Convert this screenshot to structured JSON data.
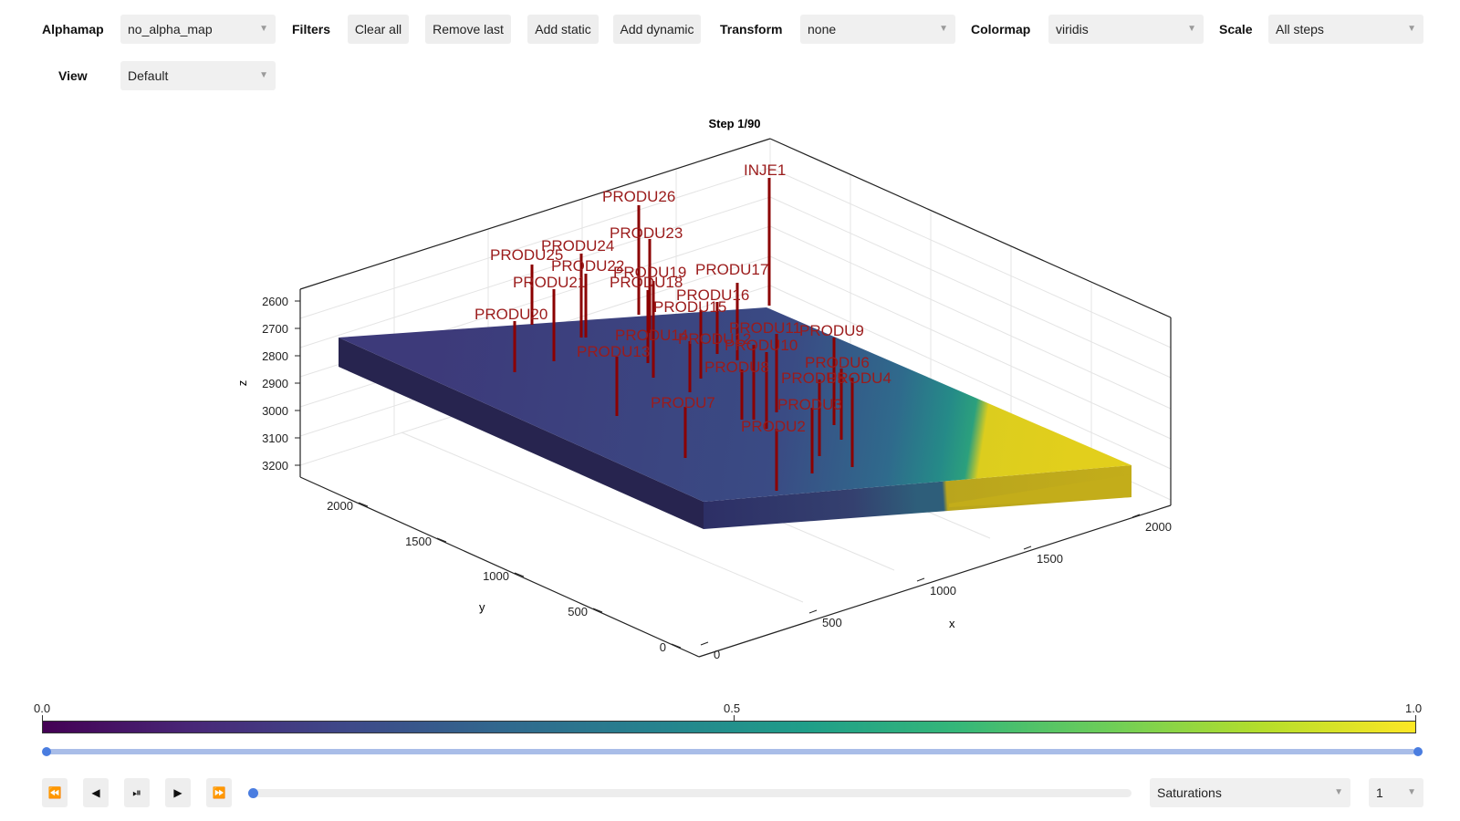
{
  "toolbar": {
    "alphamap": {
      "label": "Alphamap",
      "value": "no_alpha_map"
    },
    "filters": {
      "label": "Filters"
    },
    "buttons": {
      "clear_all": "Clear all",
      "remove_last": "Remove last",
      "add_static": "Add static",
      "add_dynamic": "Add dynamic"
    },
    "transform": {
      "label": "Transform",
      "value": "none"
    },
    "colormap": {
      "label": "Colormap",
      "value": "viridis"
    },
    "scale": {
      "label": "Scale",
      "value": "All steps"
    },
    "view": {
      "label": "View",
      "value": "Default"
    }
  },
  "colors": {
    "accent": "#4a7de0",
    "well": "#8b0000",
    "well_label": "#9b1b1b"
  },
  "chart_data": {
    "type": "3d-volume",
    "title": "Step 1/90",
    "xlabel": "x",
    "ylabel": "y",
    "zlabel": "z",
    "x_ticks": [
      0,
      500,
      1000,
      1500,
      2000
    ],
    "y_ticks": [
      0,
      500,
      1000,
      1500,
      2000
    ],
    "z_ticks": [
      2600,
      2700,
      2800,
      2900,
      3000,
      3100,
      3200
    ],
    "colormap": "viridis",
    "wells": [
      "INJE1",
      "PRODU26",
      "PRODU23",
      "PRODU24",
      "PRODU25",
      "PRODU22",
      "PRODU19",
      "PRODU17",
      "PRODU21",
      "PRODU18",
      "PRODU16",
      "PRODU15",
      "PRODU20",
      "PRODU11",
      "PRODU9",
      "PRODU14",
      "PRODU12",
      "PRODU10",
      "PRODU13",
      "PRODU8",
      "PRODU6",
      "PRODU5",
      "PRODU4",
      "PRODU7",
      "PRODU3",
      "PRODU2"
    ]
  },
  "colorbar": {
    "min_label": "0.0",
    "mid_label": "0.5",
    "max_label": "1.0"
  },
  "player": {
    "rewind_icon": "⏪",
    "prev_icon": "◀",
    "playpause_icon": "⏯",
    "play_icon": "▶",
    "forward_icon": "⏩",
    "variable": "Saturations",
    "component": "1"
  }
}
